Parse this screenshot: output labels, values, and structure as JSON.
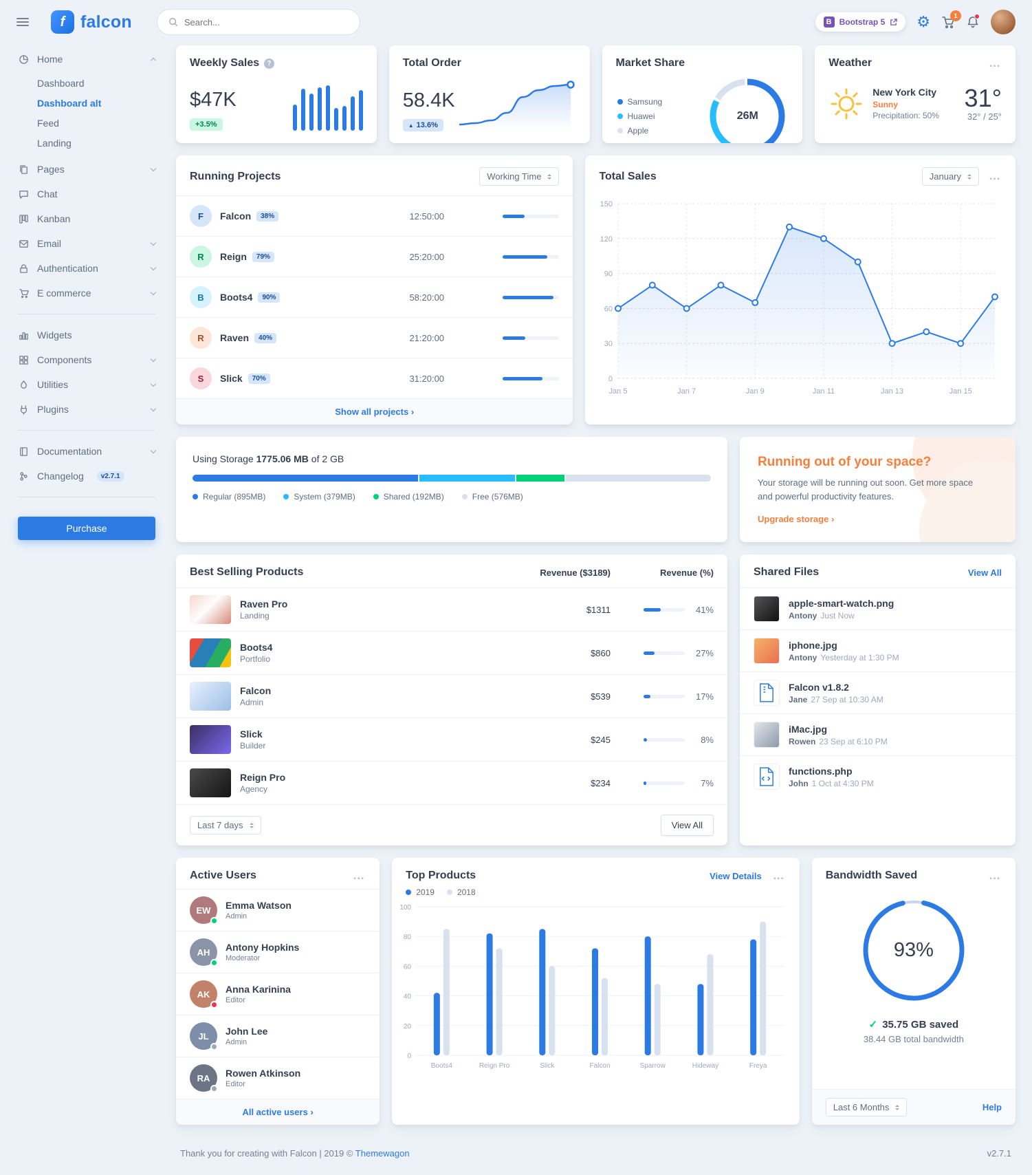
{
  "navbar": {
    "brand": "falcon",
    "search_placeholder": "Search...",
    "bootstrap_badge": "Bootstrap 5",
    "cart_count": "1"
  },
  "sidebar": {
    "home_label": "Home",
    "home_children": [
      "Dashboard",
      "Dashboard alt",
      "Feed",
      "Landing"
    ],
    "pages": "Pages",
    "chat": "Chat",
    "kanban": "Kanban",
    "email": "Email",
    "authentication": "Authentication",
    "ecommerce": "E commerce",
    "widgets": "Widgets",
    "components": "Components",
    "utilities": "Utilities",
    "plugins": "Plugins",
    "documentation": "Documentation",
    "changelog": "Changelog",
    "changelog_badge": "v2.7.1",
    "purchase_label": "Purchase"
  },
  "weekly_sales": {
    "title": "Weekly Sales",
    "value": "$47K",
    "badge": "+3.5%"
  },
  "total_order": {
    "title": "Total Order",
    "value": "58.4K",
    "badge": "13.6%"
  },
  "market_share": {
    "title": "Market Share",
    "center": "26M",
    "legend": [
      {
        "label": "Samsung",
        "color": "#2c7be5"
      },
      {
        "label": "Huawei",
        "color": "#27bcfd"
      },
      {
        "label": "Apple",
        "color": "#d8e2ef"
      }
    ]
  },
  "weather": {
    "title": "Weather",
    "city": "New York City",
    "condition": "Sunny",
    "precipitation": "Precipitation: 50%",
    "temp": "31°",
    "range": "32° / 25°"
  },
  "running_projects": {
    "title": "Running Projects",
    "dropdown": "Working Time",
    "footer_link": "Show all projects",
    "items": [
      {
        "initial": "F",
        "name": "Falcon",
        "percent": "38%",
        "time": "12:50:00",
        "bar": 38,
        "bg": "#d5e5fa",
        "fg": "#1c4f93"
      },
      {
        "initial": "R",
        "name": "Reign",
        "percent": "79%",
        "time": "25:20:00",
        "bar": 79,
        "bg": "#ccf6e4",
        "fg": "#00864e"
      },
      {
        "initial": "B",
        "name": "Boots4",
        "percent": "90%",
        "time": "58:20:00",
        "bar": 90,
        "bg": "#d4f2ff",
        "fg": "#1978a2"
      },
      {
        "initial": "R",
        "name": "Raven",
        "percent": "40%",
        "time": "21:20:00",
        "bar": 40,
        "bg": "#fde6d8",
        "fg": "#9d5228"
      },
      {
        "initial": "S",
        "name": "Slick",
        "percent": "70%",
        "time": "31:20:00",
        "bar": 70,
        "bg": "#fad7dd",
        "fg": "#932338"
      }
    ]
  },
  "total_sales": {
    "title": "Total Sales",
    "dropdown": "January"
  },
  "storage": {
    "label_prefix": "Using Storage ",
    "label_bold": "1775.06 MB",
    "label_suffix": " of 2 GB",
    "segments": [
      {
        "label": "Regular (895MB)",
        "color": "#2c7be5",
        "width": 43.7
      },
      {
        "label": "System (379MB)",
        "color": "#27bcfd",
        "width": 18.5
      },
      {
        "label": "Shared (192MB)",
        "color": "#00d27a",
        "width": 9.4
      },
      {
        "label": "Free (576MB)",
        "color": "#d8e2ef",
        "width": 28.1
      }
    ]
  },
  "space_card": {
    "title": "Running out of your space?",
    "body": "Your storage will be running out soon. Get more space and powerful productivity features.",
    "link": "Upgrade storage"
  },
  "best_selling": {
    "title": "Best Selling Products",
    "col_revenue": "Revenue ($3189)",
    "col_percent": "Revenue (%)",
    "dropdown": "Last 7 days",
    "view_all": "View All",
    "items": [
      {
        "name": "Raven Pro",
        "category": "Landing",
        "revenue": "$1311",
        "percent": "41%",
        "bar": 41
      },
      {
        "name": "Boots4",
        "category": "Portfolio",
        "revenue": "$860",
        "percent": "27%",
        "bar": 27
      },
      {
        "name": "Falcon",
        "category": "Admin",
        "revenue": "$539",
        "percent": "17%",
        "bar": 17
      },
      {
        "name": "Slick",
        "category": "Builder",
        "revenue": "$245",
        "percent": "8%",
        "bar": 8
      },
      {
        "name": "Reign Pro",
        "category": "Agency",
        "revenue": "$234",
        "percent": "7%",
        "bar": 7
      }
    ]
  },
  "shared_files": {
    "title": "Shared Files",
    "view_all": "View All",
    "items": [
      {
        "name": "apple-smart-watch.png",
        "author": "Antony",
        "time": "Just Now"
      },
      {
        "name": "iphone.jpg",
        "author": "Antony",
        "time": "Yesterday at 1:30 PM"
      },
      {
        "name": "Falcon v1.8.2",
        "author": "Jane",
        "time": "27 Sep at 10:30 AM"
      },
      {
        "name": "iMac.jpg",
        "author": "Rowen",
        "time": "23 Sep at 6:10 PM"
      },
      {
        "name": "functions.php",
        "author": "John",
        "time": "1 Oct at 4:30 PM"
      }
    ]
  },
  "active_users": {
    "title": "Active Users",
    "footer_link": "All active users",
    "items": [
      {
        "name": "Emma Watson",
        "role": "Admin",
        "initials": "EW",
        "status": "#00d27a",
        "avatar_bg": "#b0797c"
      },
      {
        "name": "Antony Hopkins",
        "role": "Moderator",
        "initials": "AH",
        "status": "#00d27a",
        "avatar_bg": "#8a94a6"
      },
      {
        "name": "Anna Karinina",
        "role": "Editor",
        "initials": "AK",
        "status": "#e63757",
        "avatar_bg": "#c2826a"
      },
      {
        "name": "John Lee",
        "role": "Admin",
        "initials": "JL",
        "status": "#9da9bb",
        "avatar_bg": "#7e8ea8"
      },
      {
        "name": "Rowen Atkinson",
        "role": "Editor",
        "initials": "RA",
        "status": "#9da9bb",
        "avatar_bg": "#6d7584"
      }
    ]
  },
  "top_products": {
    "title": "Top Products",
    "view_details": "View Details",
    "legend": [
      {
        "label": "2019",
        "color": "#2c7be5"
      },
      {
        "label": "2018",
        "color": "#d8e2ef"
      }
    ]
  },
  "bandwidth": {
    "title": "Bandwidth Saved",
    "percent": "93%",
    "saved": "35.75 GB saved",
    "total": "38.44 GB total bandwidth",
    "dropdown": "Last 6 Months",
    "help": "Help"
  },
  "page_footer": {
    "text": "Thank you for creating with Falcon | 2019 © ",
    "brand": "Themewagon",
    "version": "v2.7.1"
  },
  "chart_data": [
    {
      "id": "weekly_sales",
      "type": "bar",
      "title": "Weekly Sales",
      "values": [
        42,
        68,
        60,
        70,
        73,
        36,
        40,
        55,
        65
      ],
      "color": "#2c7be5"
    },
    {
      "id": "total_order",
      "type": "area",
      "title": "Total Order",
      "values": [
        18,
        20,
        24,
        35,
        58,
        68,
        74,
        76
      ],
      "color": "#2c7be5"
    },
    {
      "id": "market_share",
      "type": "pie",
      "title": "Market Share",
      "labels": [
        "Samsung",
        "Huawei",
        "Apple"
      ],
      "values": [
        13,
        8.7,
        4.3
      ],
      "colors": [
        "#2c7be5",
        "#27bcfd",
        "#d8e2ef"
      ],
      "center_label": "26M"
    },
    {
      "id": "total_sales",
      "type": "line",
      "title": "Total Sales (January)",
      "x": [
        "Jan 5",
        "Jan 7",
        "Jan 9",
        "Jan 11",
        "Jan 13",
        "Jan 15"
      ],
      "values": [
        60,
        80,
        60,
        80,
        65,
        130,
        120,
        100,
        30,
        40,
        30,
        70
      ],
      "ylim": [
        0,
        150
      ],
      "yticks": [
        0,
        30,
        60,
        90,
        120,
        150
      ],
      "color": "#2c7be5"
    },
    {
      "id": "top_products",
      "type": "bar",
      "title": "Top Products",
      "categories": [
        "Boots4",
        "Reign Pro",
        "Slick",
        "Falcon",
        "Sparrow",
        "Hideway",
        "Freya"
      ],
      "series": [
        {
          "name": "2019",
          "values": [
            42,
            82,
            85,
            72,
            80,
            48,
            78
          ],
          "color": "#2c7be5"
        },
        {
          "name": "2018",
          "values": [
            85,
            72,
            60,
            52,
            48,
            68,
            90
          ],
          "color": "#d8e2ef"
        }
      ],
      "ylim": [
        0,
        100
      ],
      "yticks": [
        0,
        20,
        40,
        60,
        80,
        100
      ]
    },
    {
      "id": "bandwidth_saved",
      "type": "gauge",
      "title": "Bandwidth Saved",
      "value": 93,
      "color": "#2c7be5"
    }
  ]
}
